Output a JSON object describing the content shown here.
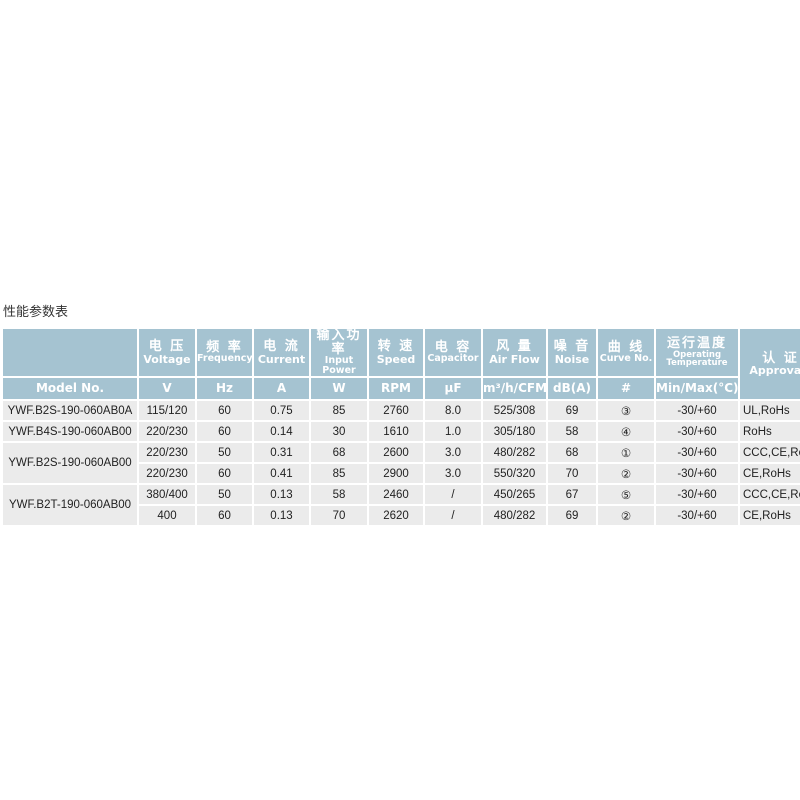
{
  "title": "性能参数表",
  "header": {
    "model_label": "Model No.",
    "columns": [
      {
        "cn": "电 压",
        "en": "Voltage",
        "unit": "V"
      },
      {
        "cn": "频 率",
        "en": "Frequency",
        "unit": "Hz"
      },
      {
        "cn": "电 流",
        "en": "Current",
        "unit": "A"
      },
      {
        "cn": "输入功率",
        "en": "Input Power",
        "unit": "W"
      },
      {
        "cn": "转 速",
        "en": "Speed",
        "unit": "RPM"
      },
      {
        "cn": "电 容",
        "en": "Capacitor",
        "unit": "µF"
      },
      {
        "cn": "风 量",
        "en": "Air Flow",
        "unit": "m³/h/CFM"
      },
      {
        "cn": "噪 音",
        "en": "Noise",
        "unit": "dB(A)"
      },
      {
        "cn": "曲 线",
        "en": "Curve No.",
        "unit": "#"
      },
      {
        "cn": "运行温度",
        "en": "Operating Temperature",
        "unit": "Min/Max(°C)"
      },
      {
        "cn": "认 证",
        "en": "Approvals"
      }
    ]
  },
  "models": [
    "YWF.B2S-190-060AB0A",
    "YWF.B4S-190-060AB00",
    "YWF.B2S-190-060AB00",
    "YWF.B2T-190-060AB00"
  ],
  "rows": [
    [
      "115/120",
      "60",
      "0.75",
      "85",
      "2760",
      "8.0",
      "525/308",
      "69",
      "③",
      "-30/+60",
      "UL,RoHs"
    ],
    [
      "220/230",
      "60",
      "0.14",
      "30",
      "1610",
      "1.0",
      "305/180",
      "58",
      "④",
      "-30/+60",
      "RoHs"
    ],
    [
      "220/230",
      "50",
      "0.31",
      "68",
      "2600",
      "3.0",
      "480/282",
      "68",
      "①",
      "-30/+60",
      "CCC,CE,RoHs"
    ],
    [
      "220/230",
      "60",
      "0.41",
      "85",
      "2900",
      "3.0",
      "550/320",
      "70",
      "②",
      "-30/+60",
      "CE,RoHs"
    ],
    [
      "380/400",
      "50",
      "0.13",
      "58",
      "2460",
      "/",
      "450/265",
      "67",
      "⑤",
      "-30/+60",
      "CCC,CE,RoHs"
    ],
    [
      "400",
      "60",
      "0.13",
      "70",
      "2620",
      "/",
      "480/282",
      "69",
      "②",
      "-30/+60",
      "CE,RoHs"
    ]
  ],
  "colors": {
    "header_bg": "#a5c3d1",
    "row_bg": "#ebebeb"
  }
}
